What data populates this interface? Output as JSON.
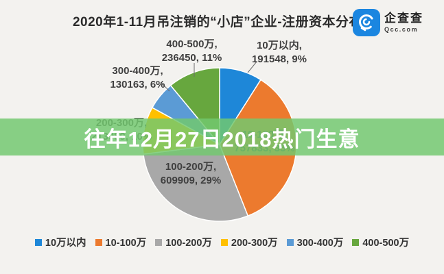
{
  "header": {
    "title": "2020年1-11月吊注销的“小店”企业-注册资本分布",
    "logo": {
      "name": "企查查",
      "domain": "Qcc.com",
      "icon_color": "#1b86e0"
    }
  },
  "banner": {
    "text": "往年12月27日2018热门生意",
    "bg_color": "#72c86f",
    "text_color": "#ffffff"
  },
  "chart_data": {
    "type": "pie",
    "title": "2020年1-11月吊注销的“小店”企业-注册资本分布",
    "categories": [
      "10万以内",
      "10-100万",
      "100-200万",
      "200-300万",
      "300-400万",
      "400-500万"
    ],
    "values": [
      191548,
      757833,
      609909,
      213989,
      130163,
      236450
    ],
    "percents": [
      9,
      35,
      29,
      10,
      6,
      11
    ],
    "colors": [
      "#1e87d8",
      "#ec7a2e",
      "#a8a8a8",
      "#ffc000",
      "#5b9bd5",
      "#67a73e"
    ],
    "start_angle_deg": 0,
    "direction": "clockwise",
    "legend_position": "bottom",
    "labels": [
      {
        "line1": "10万以内,",
        "line2": "191548, 9%"
      },
      {
        "line1": "10-100万,",
        "line2": "757833, 35%"
      },
      {
        "line1": "100-200万,",
        "line2": "609909, 29%"
      },
      {
        "line1": "200-300万,",
        "line2": "213989, 10%"
      },
      {
        "line1": "300-400万,",
        "line2": "130163, 6%"
      },
      {
        "line1": "400-500万,",
        "line2": "236450, 11%"
      }
    ]
  }
}
